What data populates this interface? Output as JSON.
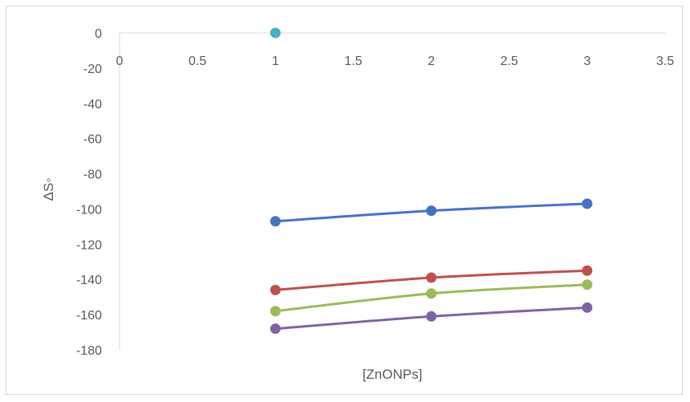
{
  "chart_data": {
    "type": "line",
    "title": "",
    "xlabel": "[ZnONPs]",
    "ylabel": "ΔS◦",
    "xlim": [
      0,
      3.5
    ],
    "ylim": [
      -180,
      0
    ],
    "x_ticks": [
      "0",
      "0.5",
      "1",
      "1.5",
      "2",
      "2.5",
      "3",
      "3.5"
    ],
    "y_ticks": [
      "0",
      "-20",
      "-40",
      "-60",
      "-80",
      "-100",
      "-120",
      "-140",
      "-160",
      "-180"
    ],
    "grid": false,
    "legend": "none",
    "series": [
      {
        "color": "#4472c4",
        "x": [
          1,
          2,
          3
        ],
        "values": [
          -107,
          -101,
          -97
        ]
      },
      {
        "color": "#c0504d",
        "x": [
          1,
          2,
          3
        ],
        "values": [
          -146,
          -139,
          -135
        ]
      },
      {
        "color": "#9bbb59",
        "x": [
          1,
          2,
          3
        ],
        "values": [
          -158,
          -148,
          -143
        ]
      },
      {
        "color": "#8064a2",
        "x": [
          1,
          2,
          3
        ],
        "values": [
          -168,
          -161,
          -156
        ]
      },
      {
        "color": "#4bacc6",
        "x": [
          1
        ],
        "values": [
          0
        ]
      }
    ]
  }
}
